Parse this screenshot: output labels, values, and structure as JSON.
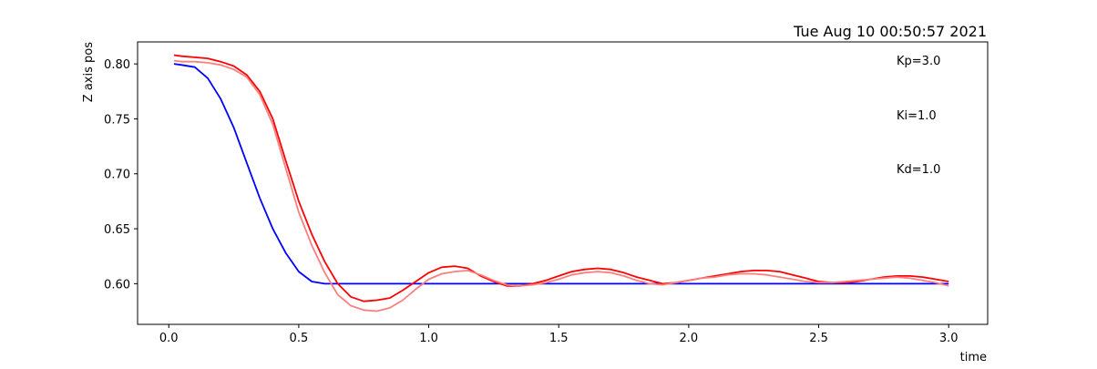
{
  "chart_data": {
    "type": "line",
    "title": "Tue Aug 10 00:50:57 2021",
    "xlabel": "time",
    "ylabel": "Z axis pos",
    "xlim": [
      -0.12,
      3.15
    ],
    "ylim": [
      0.563,
      0.82
    ],
    "xticks": [
      "0.0",
      "0.5",
      "1.0",
      "1.5",
      "2.0",
      "2.5",
      "3.0"
    ],
    "yticks": [
      "0.60",
      "0.65",
      "0.70",
      "0.75",
      "0.80"
    ],
    "grid": false,
    "annotations": [
      "Kp=3.0",
      "Ki=1.0",
      "Kd=1.0"
    ],
    "series": [
      {
        "color": "#0000ff",
        "x": [
          0.02,
          0.05,
          0.1,
          0.15,
          0.2,
          0.25,
          0.3,
          0.35,
          0.4,
          0.45,
          0.5,
          0.55,
          0.6,
          0.7,
          1.0,
          1.5,
          2.0,
          2.5,
          3.0
        ],
        "y": [
          0.8,
          0.799,
          0.797,
          0.787,
          0.768,
          0.742,
          0.71,
          0.678,
          0.65,
          0.628,
          0.611,
          0.602,
          0.6,
          0.6,
          0.6,
          0.6,
          0.6,
          0.6,
          0.6
        ]
      },
      {
        "color": "#ff0000",
        "x": [
          0.02,
          0.05,
          0.1,
          0.15,
          0.2,
          0.25,
          0.3,
          0.35,
          0.4,
          0.45,
          0.5,
          0.55,
          0.6,
          0.65,
          0.7,
          0.75,
          0.8,
          0.85,
          0.9,
          0.95,
          1.0,
          1.05,
          1.1,
          1.15,
          1.2,
          1.25,
          1.3,
          1.35,
          1.4,
          1.45,
          1.5,
          1.55,
          1.6,
          1.65,
          1.7,
          1.75,
          1.8,
          1.85,
          1.9,
          1.95,
          2.0,
          2.05,
          2.1,
          2.15,
          2.2,
          2.25,
          2.3,
          2.35,
          2.4,
          2.45,
          2.5,
          2.55,
          2.6,
          2.65,
          2.7,
          2.75,
          2.8,
          2.85,
          2.9,
          2.95,
          3.0
        ],
        "y": [
          0.808,
          0.807,
          0.806,
          0.805,
          0.802,
          0.798,
          0.79,
          0.775,
          0.75,
          0.712,
          0.675,
          0.645,
          0.62,
          0.6,
          0.588,
          0.584,
          0.585,
          0.587,
          0.594,
          0.602,
          0.61,
          0.615,
          0.616,
          0.614,
          0.607,
          0.602,
          0.598,
          0.598,
          0.6,
          0.603,
          0.607,
          0.611,
          0.613,
          0.614,
          0.613,
          0.61,
          0.606,
          0.603,
          0.6,
          0.601,
          0.603,
          0.605,
          0.607,
          0.609,
          0.611,
          0.612,
          0.612,
          0.611,
          0.608,
          0.605,
          0.602,
          0.601,
          0.601,
          0.602,
          0.604,
          0.606,
          0.607,
          0.607,
          0.606,
          0.604,
          0.602
        ]
      },
      {
        "color": "#f88080",
        "x": [
          0.02,
          0.05,
          0.1,
          0.15,
          0.2,
          0.25,
          0.3,
          0.35,
          0.4,
          0.45,
          0.5,
          0.55,
          0.6,
          0.65,
          0.7,
          0.75,
          0.8,
          0.85,
          0.9,
          0.95,
          1.0,
          1.05,
          1.1,
          1.15,
          1.2,
          1.25,
          1.3,
          1.35,
          1.4,
          1.45,
          1.5,
          1.55,
          1.6,
          1.65,
          1.7,
          1.75,
          1.8,
          1.85,
          1.9,
          1.95,
          2.0,
          2.05,
          2.1,
          2.15,
          2.2,
          2.25,
          2.3,
          2.35,
          2.4,
          2.45,
          2.5,
          2.55,
          2.6,
          2.65,
          2.7,
          2.75,
          2.8,
          2.85,
          2.9,
          2.95,
          3.0
        ],
        "y": [
          0.803,
          0.802,
          0.802,
          0.801,
          0.799,
          0.795,
          0.788,
          0.772,
          0.745,
          0.705,
          0.665,
          0.635,
          0.61,
          0.59,
          0.58,
          0.576,
          0.575,
          0.578,
          0.585,
          0.595,
          0.604,
          0.609,
          0.611,
          0.612,
          0.608,
          0.603,
          0.599,
          0.598,
          0.599,
          0.601,
          0.604,
          0.608,
          0.61,
          0.611,
          0.61,
          0.607,
          0.603,
          0.6,
          0.599,
          0.601,
          0.603,
          0.605,
          0.606,
          0.608,
          0.609,
          0.609,
          0.608,
          0.606,
          0.604,
          0.602,
          0.601,
          0.601,
          0.602,
          0.603,
          0.604,
          0.605,
          0.606,
          0.605,
          0.603,
          0.601,
          0.598
        ]
      }
    ]
  }
}
